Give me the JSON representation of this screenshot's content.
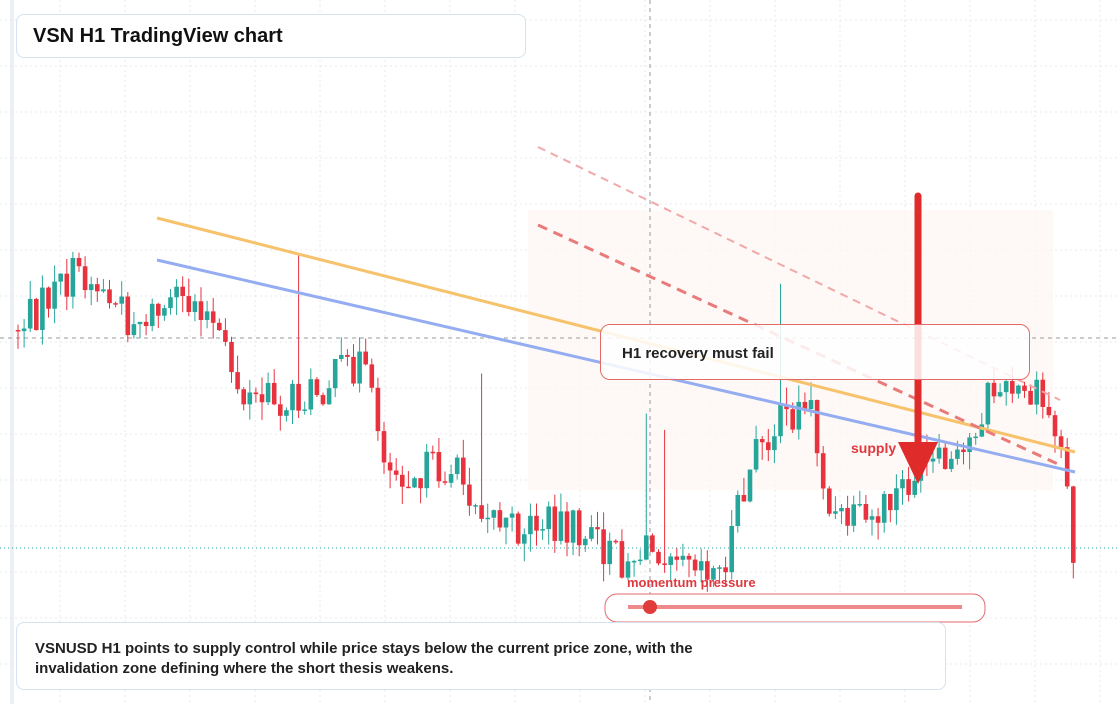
{
  "header": {
    "title": "VSN H1 TradingView chart"
  },
  "annotations": {
    "callout": "H1 recovery must fail",
    "supply": "supply",
    "momentum": "momentum pressure"
  },
  "description": "VSNUSD H1 points to supply control while price stays below the current price zone, with the invalidation zone defining where the short thesis weakens."
}
